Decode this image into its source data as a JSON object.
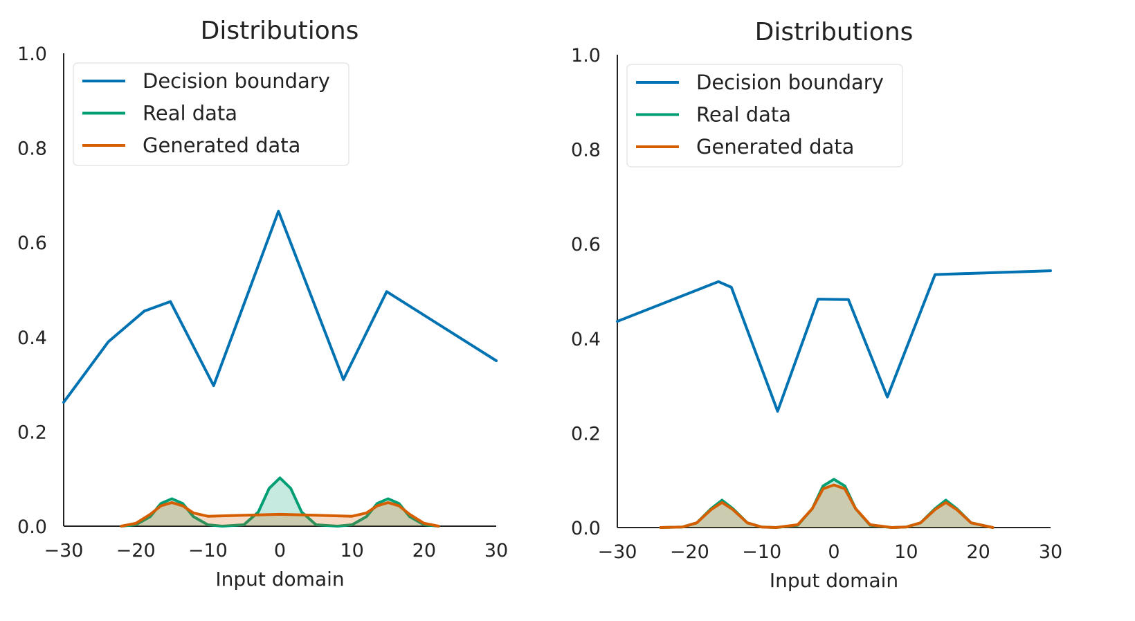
{
  "chart_data": [
    {
      "type": "line",
      "title": "Distributions",
      "xlabel": "Input domain",
      "ylabel": "",
      "xlim": [
        -30,
        30
      ],
      "ylim": [
        0,
        1.0
      ],
      "xticks": [
        -30,
        -20,
        -10,
        0,
        10,
        20,
        30
      ],
      "xtick_labels": [
        "−30",
        "−20",
        "−10",
        "0",
        "10",
        "20",
        "30"
      ],
      "yticks": [
        0,
        0.2,
        0.4,
        0.6,
        0.8,
        1.0
      ],
      "ytick_labels": [
        "0.0",
        "0.2",
        "0.4",
        "0.6",
        "0.8",
        "1.0"
      ],
      "grid": false,
      "legend_position": "top-left",
      "series": [
        {
          "name": "Decision boundary",
          "color": "#0072b2",
          "kind": "line",
          "x": [
            -30,
            -23.8,
            -18.8,
            -15.2,
            -9.2,
            -0.2,
            8.8,
            14.8,
            30
          ],
          "y": [
            0.262,
            0.39,
            0.455,
            0.475,
            0.297,
            0.666,
            0.31,
            0.496,
            0.35
          ]
        },
        {
          "name": "Real data",
          "color": "#009e73",
          "kind": "density",
          "x": [
            -22,
            -20,
            -18,
            -16.5,
            -15,
            -13.5,
            -12,
            -10,
            -8,
            -5,
            -3,
            -1.5,
            0,
            1.5,
            3,
            5,
            8,
            10,
            12,
            13.5,
            15,
            16.5,
            18,
            20,
            22
          ],
          "y": [
            0,
            0.003,
            0.02,
            0.048,
            0.058,
            0.048,
            0.02,
            0.003,
            0.0,
            0.003,
            0.03,
            0.08,
            0.102,
            0.08,
            0.03,
            0.003,
            0.0,
            0.003,
            0.02,
            0.048,
            0.058,
            0.048,
            0.02,
            0.003,
            0
          ]
        },
        {
          "name": "Generated data",
          "color": "#d55e00",
          "kind": "density",
          "x": [
            -22,
            -20,
            -18,
            -16.5,
            -15,
            -13.5,
            -12,
            -10,
            -5,
            0,
            5,
            10,
            12,
            13.5,
            15,
            16.5,
            18,
            20,
            22
          ],
          "y": [
            0,
            0.006,
            0.025,
            0.043,
            0.05,
            0.043,
            0.028,
            0.021,
            0.023,
            0.025,
            0.023,
            0.021,
            0.028,
            0.043,
            0.05,
            0.043,
            0.025,
            0.006,
            0
          ]
        }
      ]
    },
    {
      "type": "line",
      "title": "Distributions",
      "xlabel": "Input domain",
      "ylabel": "",
      "xlim": [
        -30,
        30
      ],
      "ylim": [
        0,
        1.0
      ],
      "xticks": [
        -30,
        -20,
        -10,
        0,
        10,
        20,
        30
      ],
      "xtick_labels": [
        "−30",
        "−20",
        "−10",
        "0",
        "10",
        "20",
        "30"
      ],
      "yticks": [
        0,
        0.2,
        0.4,
        0.6,
        0.8,
        1.0
      ],
      "ytick_labels": [
        "0.0",
        "0.2",
        "0.4",
        "0.6",
        "0.8",
        "1.0"
      ],
      "grid": false,
      "legend_position": "top-left",
      "series": [
        {
          "name": "Decision boundary",
          "color": "#0072b2",
          "kind": "line",
          "x": [
            -30,
            -16,
            -14.2,
            -7.8,
            -2.2,
            2,
            7.4,
            14,
            30
          ],
          "y": [
            0.436,
            0.52,
            0.508,
            0.246,
            0.483,
            0.482,
            0.276,
            0.535,
            0.543
          ]
        },
        {
          "name": "Real data",
          "color": "#009e73",
          "kind": "density",
          "x": [
            -24,
            -21,
            -19,
            -17,
            -15.5,
            -14,
            -12,
            -10,
            -8,
            -5,
            -3,
            -1.5,
            0,
            1.5,
            3,
            5,
            8,
            10,
            12,
            14,
            15.5,
            17,
            19,
            22
          ],
          "y": [
            0,
            0.001,
            0.01,
            0.04,
            0.058,
            0.04,
            0.01,
            0.001,
            0.0,
            0.005,
            0.04,
            0.088,
            0.102,
            0.088,
            0.04,
            0.005,
            0.0,
            0.001,
            0.01,
            0.04,
            0.058,
            0.04,
            0.01,
            0
          ]
        },
        {
          "name": "Generated data",
          "color": "#d55e00",
          "kind": "density",
          "x": [
            -24,
            -21,
            -19,
            -17,
            -15.5,
            -14,
            -12,
            -10,
            -8,
            -5,
            -3,
            -1.5,
            0,
            1.5,
            3,
            5,
            8,
            10,
            12,
            14,
            15.5,
            17,
            19,
            22
          ],
          "y": [
            0,
            0.001,
            0.01,
            0.038,
            0.053,
            0.038,
            0.01,
            0.001,
            0.0,
            0.006,
            0.04,
            0.082,
            0.09,
            0.082,
            0.04,
            0.006,
            0.0,
            0.001,
            0.01,
            0.038,
            0.053,
            0.038,
            0.01,
            0
          ]
        }
      ]
    }
  ]
}
